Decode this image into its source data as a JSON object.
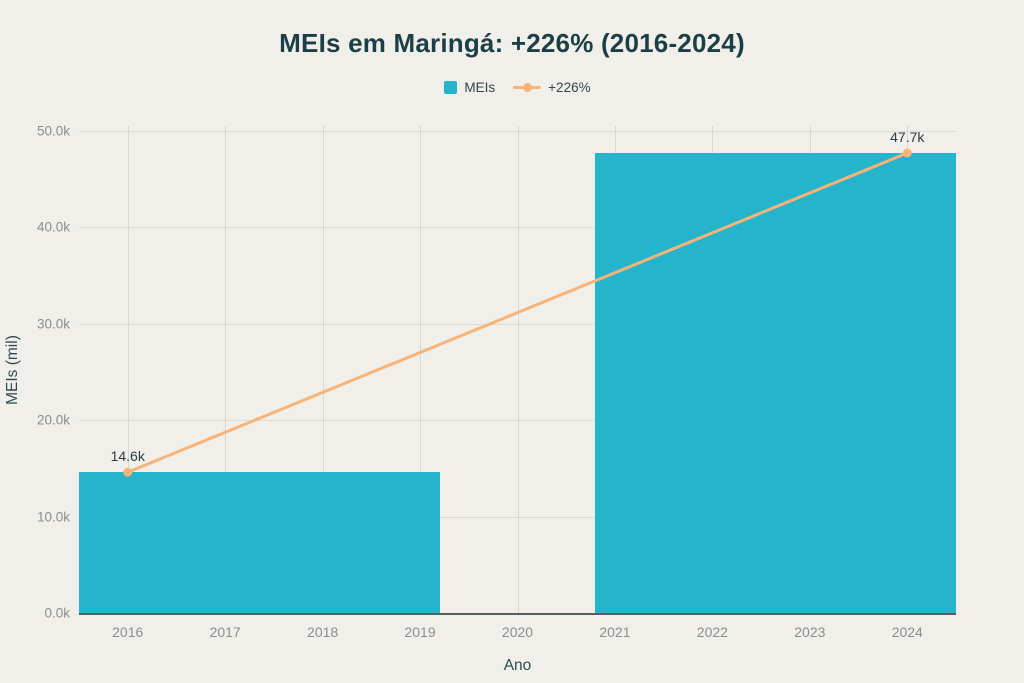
{
  "title": "MEIs em Maringá: +226% (2016-2024)",
  "legend": [
    {
      "label": "MEIs",
      "type": "bar",
      "color": "#24b5cc"
    },
    {
      "label": "+226%",
      "type": "line",
      "color": "#f9b377"
    }
  ],
  "colors": {
    "background": "#f0efe9",
    "bar": "#24b5cc",
    "line": "#f9b377",
    "title_text": "#1c3f46",
    "axis_title_text": "#2f4b52",
    "tick_text": "#8d8d8b",
    "grid": "#dcdbd2",
    "zero_line": "#565f5e"
  },
  "chart_data": {
    "type": "bar",
    "title": "MEIs em Maringá: +226% (2016-2024)",
    "xlabel": "Ano",
    "ylabel": "MEIs (mil)",
    "grid": true,
    "legend_position": "top-center",
    "xlim": [
      2015.5,
      2024.5
    ],
    "ylim": [
      0,
      50500
    ],
    "x_ticks": [
      2016,
      2017,
      2018,
      2019,
      2020,
      2021,
      2022,
      2023,
      2024
    ],
    "y_ticks": [
      {
        "label": "0.0k",
        "value": 0
      },
      {
        "label": "10.0k",
        "value": 10000
      },
      {
        "label": "20.0k",
        "value": 20000
      },
      {
        "label": "30.0k",
        "value": 30000
      },
      {
        "label": "40.0k",
        "value": 40000
      },
      {
        "label": "50.0k",
        "value": 50000
      }
    ],
    "series": [
      {
        "name": "MEIs",
        "type": "bar",
        "color": "#24b5cc",
        "x": [
          2016,
          2024
        ],
        "values": [
          14600,
          47700
        ],
        "bar_width": 6.4
      },
      {
        "name": "+226%",
        "type": "line",
        "color": "#f9b377",
        "x": [
          2016,
          2024
        ],
        "values": [
          14600,
          47700
        ],
        "point_labels": [
          "14.6k",
          "47.7k"
        ]
      }
    ]
  }
}
